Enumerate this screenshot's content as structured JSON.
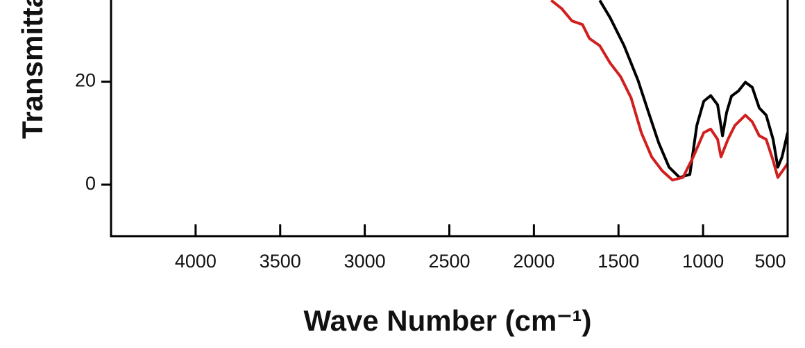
{
  "chart_data": {
    "type": "line",
    "xlabel": "Wave Number (cm⁻¹)",
    "ylabel": "Transmittance (%)",
    "xlim": [
      4500,
      500
    ],
    "xticks": [
      4000,
      3500,
      3000,
      2500,
      2000,
      1500,
      1000,
      500
    ],
    "ylim": [
      -10,
      36
    ],
    "yticks": [
      0,
      20
    ],
    "grid": false,
    "series": [
      {
        "color": "#000000",
        "x": [
          1611,
          1549,
          1467,
          1385,
          1324,
          1262,
          1201,
          1139,
          1078,
          1037,
          996,
          955,
          914,
          885,
          861,
          832,
          791,
          750,
          709,
          668,
          627,
          586,
          558,
          533,
          500
        ],
        "values": [
          35.8,
          32.4,
          27.0,
          20.3,
          14.2,
          8.1,
          3.4,
          1.4,
          2.0,
          11.5,
          16.2,
          17.3,
          15.5,
          9.5,
          14.0,
          17.2,
          18.2,
          19.9,
          18.9,
          14.9,
          13.5,
          8.8,
          3.4,
          5.4,
          10.1
        ]
      },
      {
        "color": "#d11f1f",
        "x": [
          1898,
          1836,
          1775,
          1713,
          1672,
          1611,
          1549,
          1488,
          1426,
          1365,
          1304,
          1242,
          1181,
          1119,
          1058,
          996,
          955,
          914,
          894,
          853,
          812,
          750,
          709,
          668,
          627,
          586,
          558,
          500
        ],
        "values": [
          35.8,
          34.2,
          31.8,
          31.1,
          28.4,
          27.0,
          23.6,
          21.0,
          16.9,
          10.1,
          5.4,
          2.7,
          0.9,
          1.4,
          5.4,
          10.1,
          10.8,
          8.8,
          5.4,
          8.8,
          11.5,
          13.5,
          12.2,
          9.5,
          8.8,
          4.7,
          1.4,
          4.1
        ]
      }
    ]
  }
}
